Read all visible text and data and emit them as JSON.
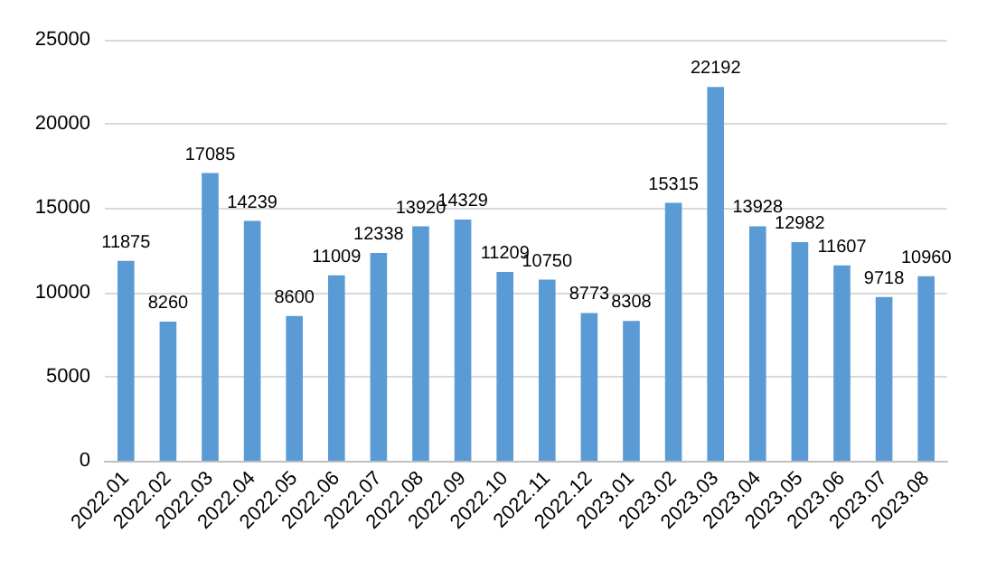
{
  "chart_data": {
    "type": "bar",
    "categories": [
      "2022.01",
      "2022.02",
      "2022.03",
      "2022.04",
      "2022.05",
      "2022.06",
      "2022.07",
      "2022.08",
      "2022.09",
      "2022.10",
      "2022.11",
      "2022.12",
      "2023.01",
      "2023.02",
      "2023.03",
      "2023.04",
      "2023.05",
      "2023.06",
      "2023.07",
      "2023.08"
    ],
    "values": [
      11875,
      8260,
      17085,
      14239,
      8600,
      11009,
      12338,
      13920,
      14329,
      11209,
      10750,
      8773,
      8308,
      15315,
      22192,
      13928,
      12982,
      11607,
      9718,
      10960
    ],
    "color": "#5b9bd5",
    "ylim": [
      0,
      25000
    ],
    "yticks": [
      0,
      5000,
      10000,
      15000,
      20000,
      25000
    ],
    "grid": "y",
    "data_labels": true
  }
}
